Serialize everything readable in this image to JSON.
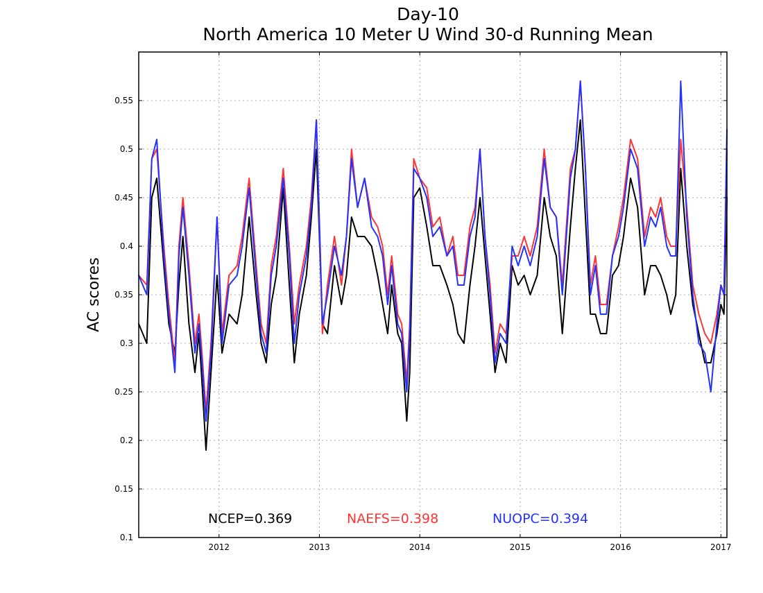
{
  "colors": {
    "NCEP": "#000000",
    "NAEFS": "#ff3333",
    "NUOPC": "#2233ff",
    "grid": "#aaaaaa"
  },
  "chart_data": {
    "type": "line",
    "title": "Day-10",
    "subtitle": "North America 10 Meter U Wind 30-d Running Mean",
    "xlabel": "",
    "ylabel": "AC scores",
    "xlim": [
      2011.2,
      2017.06
    ],
    "ylim": [
      0.1,
      0.6
    ],
    "xticks": [
      2012,
      2013,
      2014,
      2015,
      2016,
      2017
    ],
    "xtick_labels": [
      "2012",
      "2013",
      "2014",
      "2015",
      "2016",
      "2017"
    ],
    "yticks": [
      0.1,
      0.15,
      0.2,
      0.25,
      0.3,
      0.35,
      0.4,
      0.45,
      0.5,
      0.55
    ],
    "ytick_labels": [
      "0.1",
      "0.15",
      "0.2",
      "0.25",
      "0.3",
      "0.35",
      "0.4",
      "0.45",
      "0.5",
      "0.55"
    ],
    "grid": true,
    "legend_placement": "bottom",
    "legend": [
      {
        "label": "NCEP=0.369",
        "series": "NCEP"
      },
      {
        "label": "NAEFS=0.398",
        "series": "NAEFS"
      },
      {
        "label": "NUOPC=0.394",
        "series": "NUOPC"
      }
    ],
    "x": [
      2011.2,
      2011.28,
      2011.33,
      2011.38,
      2011.45,
      2011.5,
      2011.56,
      2011.6,
      2011.64,
      2011.7,
      2011.76,
      2011.8,
      2011.83,
      2011.87,
      2011.92,
      2011.98,
      2012.03,
      2012.1,
      2012.18,
      2012.23,
      2012.3,
      2012.37,
      2012.42,
      2012.47,
      2012.52,
      2012.57,
      2012.64,
      2012.7,
      2012.75,
      2012.8,
      2012.87,
      2012.92,
      2012.97,
      2013.03,
      2013.08,
      2013.15,
      2013.22,
      2013.27,
      2013.32,
      2013.38,
      2013.45,
      2013.52,
      2013.58,
      2013.63,
      2013.68,
      2013.72,
      2013.78,
      2013.82,
      2013.87,
      2013.9,
      2013.94,
      2014.0,
      2014.07,
      2014.13,
      2014.2,
      2014.27,
      2014.33,
      2014.38,
      2014.44,
      2014.5,
      2014.55,
      2014.6,
      2014.65,
      2014.7,
      2014.75,
      2014.8,
      2014.86,
      2014.92,
      2014.98,
      2015.04,
      2015.1,
      2015.17,
      2015.24,
      2015.3,
      2015.36,
      2015.42,
      2015.5,
      2015.55,
      2015.6,
      2015.65,
      2015.7,
      2015.75,
      2015.8,
      2015.86,
      2015.92,
      2015.98,
      2016.03,
      2016.1,
      2016.17,
      2016.24,
      2016.3,
      2016.35,
      2016.4,
      2016.46,
      2016.5,
      2016.55,
      2016.6,
      2016.66,
      2016.72,
      2016.78,
      2016.84,
      2016.9,
      2016.96,
      2017.0,
      2017.03,
      2017.06
    ],
    "series": [
      {
        "name": "NCEP",
        "values": [
          0.32,
          0.3,
          0.45,
          0.47,
          0.38,
          0.32,
          0.29,
          0.36,
          0.41,
          0.32,
          0.27,
          0.31,
          0.26,
          0.19,
          0.27,
          0.37,
          0.29,
          0.33,
          0.32,
          0.35,
          0.43,
          0.35,
          0.3,
          0.28,
          0.34,
          0.37,
          0.46,
          0.36,
          0.28,
          0.33,
          0.37,
          0.43,
          0.5,
          0.32,
          0.31,
          0.38,
          0.34,
          0.37,
          0.43,
          0.41,
          0.41,
          0.4,
          0.37,
          0.34,
          0.31,
          0.36,
          0.31,
          0.3,
          0.22,
          0.27,
          0.45,
          0.46,
          0.42,
          0.38,
          0.38,
          0.36,
          0.34,
          0.31,
          0.3,
          0.36,
          0.4,
          0.45,
          0.39,
          0.33,
          0.27,
          0.3,
          0.28,
          0.38,
          0.36,
          0.37,
          0.35,
          0.37,
          0.45,
          0.41,
          0.39,
          0.31,
          0.42,
          0.48,
          0.53,
          0.43,
          0.33,
          0.33,
          0.31,
          0.31,
          0.37,
          0.38,
          0.41,
          0.47,
          0.44,
          0.35,
          0.38,
          0.38,
          0.37,
          0.35,
          0.33,
          0.35,
          0.48,
          0.4,
          0.34,
          0.31,
          0.28,
          0.28,
          0.31,
          0.34,
          0.33,
          0.45
        ]
      },
      {
        "name": "NAEFS",
        "values": [
          0.37,
          0.36,
          0.49,
          0.5,
          0.4,
          0.34,
          0.28,
          0.4,
          0.45,
          0.38,
          0.3,
          0.33,
          0.29,
          0.23,
          0.3,
          0.43,
          0.31,
          0.37,
          0.38,
          0.41,
          0.47,
          0.38,
          0.32,
          0.3,
          0.38,
          0.41,
          0.48,
          0.4,
          0.32,
          0.36,
          0.4,
          0.45,
          0.53,
          0.31,
          0.36,
          0.41,
          0.36,
          0.41,
          0.5,
          0.44,
          0.47,
          0.43,
          0.42,
          0.4,
          0.35,
          0.39,
          0.33,
          0.32,
          0.26,
          0.32,
          0.49,
          0.47,
          0.46,
          0.42,
          0.43,
          0.39,
          0.41,
          0.37,
          0.37,
          0.42,
          0.44,
          0.5,
          0.41,
          0.36,
          0.29,
          0.32,
          0.31,
          0.39,
          0.39,
          0.41,
          0.39,
          0.42,
          0.5,
          0.44,
          0.43,
          0.36,
          0.48,
          0.5,
          0.57,
          0.48,
          0.36,
          0.39,
          0.34,
          0.34,
          0.39,
          0.42,
          0.45,
          0.51,
          0.49,
          0.41,
          0.44,
          0.43,
          0.45,
          0.41,
          0.4,
          0.4,
          0.51,
          0.44,
          0.36,
          0.33,
          0.31,
          0.3,
          0.33,
          0.36,
          0.35,
          0.5
        ]
      },
      {
        "name": "NUOPC",
        "values": [
          0.37,
          0.35,
          0.49,
          0.51,
          0.39,
          0.33,
          0.27,
          0.39,
          0.44,
          0.37,
          0.29,
          0.32,
          0.28,
          0.22,
          0.29,
          0.43,
          0.3,
          0.36,
          0.37,
          0.4,
          0.46,
          0.37,
          0.31,
          0.29,
          0.37,
          0.4,
          0.47,
          0.39,
          0.3,
          0.35,
          0.39,
          0.44,
          0.53,
          0.32,
          0.35,
          0.4,
          0.37,
          0.41,
          0.49,
          0.44,
          0.47,
          0.42,
          0.41,
          0.39,
          0.34,
          0.38,
          0.32,
          0.31,
          0.25,
          0.31,
          0.48,
          0.47,
          0.45,
          0.41,
          0.42,
          0.39,
          0.4,
          0.36,
          0.36,
          0.41,
          0.43,
          0.5,
          0.41,
          0.35,
          0.28,
          0.31,
          0.3,
          0.4,
          0.38,
          0.4,
          0.38,
          0.41,
          0.49,
          0.44,
          0.43,
          0.35,
          0.47,
          0.5,
          0.57,
          0.48,
          0.35,
          0.38,
          0.33,
          0.33,
          0.39,
          0.41,
          0.44,
          0.5,
          0.48,
          0.4,
          0.43,
          0.42,
          0.44,
          0.4,
          0.39,
          0.39,
          0.57,
          0.43,
          0.35,
          0.3,
          0.29,
          0.25,
          0.32,
          0.36,
          0.35,
          0.52
        ]
      }
    ]
  }
}
